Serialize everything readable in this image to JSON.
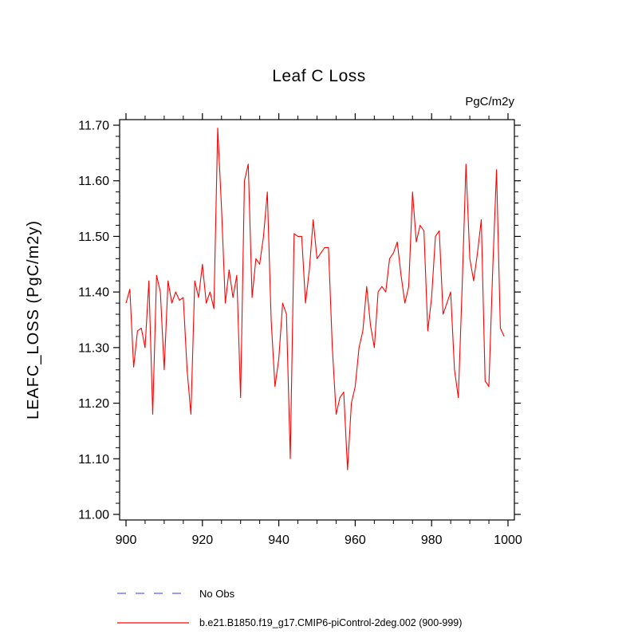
{
  "title": "Leaf C Loss",
  "units_label": "PgC/m2y",
  "y_axis_label": "LEAFC_LOSS  (PgC/m2y)",
  "legend": [
    {
      "label": "No Obs",
      "color": "#7a7aff",
      "style": "dashed"
    },
    {
      "label": "b.e21.B1850.f19_g17.CMIP6-piControl-2deg.002 (900-999)",
      "color": "#ff0000",
      "style": "solid"
    }
  ],
  "chart_data": {
    "type": "line",
    "title": "Leaf C Loss",
    "xlabel": "",
    "ylabel": "LEAFC_LOSS (PgC/m2y)",
    "xlim": [
      900,
      1000
    ],
    "ylim": [
      11.0,
      11.7
    ],
    "xticks": [
      900,
      920,
      940,
      960,
      980,
      1000
    ],
    "yticks": [
      11.0,
      11.1,
      11.2,
      11.3,
      11.4,
      11.5,
      11.6,
      11.7
    ],
    "x_minor_step": 5,
    "y_minor_step": 0.02,
    "grid": false,
    "legend_position": "bottom",
    "x_start": 900,
    "series": [
      {
        "name": "b.e21.B1850.f19_g17.CMIP6-piControl-2deg.002 (900-999)",
        "color": "#ff0000",
        "values": [
          11.38,
          11.405,
          11.265,
          11.33,
          11.335,
          11.3,
          11.42,
          11.18,
          11.43,
          11.4,
          11.26,
          11.42,
          11.38,
          11.4,
          11.385,
          11.39,
          11.26,
          11.18,
          11.42,
          11.39,
          11.45,
          11.38,
          11.4,
          11.37,
          11.695,
          11.55,
          11.38,
          11.44,
          11.39,
          11.43,
          11.21,
          11.6,
          11.63,
          11.39,
          11.46,
          11.45,
          11.5,
          11.58,
          11.35,
          11.23,
          11.28,
          11.38,
          11.36,
          11.1,
          11.505,
          11.5,
          11.5,
          11.38,
          11.44,
          11.53,
          11.46,
          11.47,
          11.48,
          11.48,
          11.3,
          11.18,
          11.21,
          11.22,
          11.08,
          11.2,
          11.23,
          11.3,
          11.33,
          11.41,
          11.34,
          11.3,
          11.4,
          11.41,
          11.4,
          11.46,
          11.47,
          11.49,
          11.43,
          11.38,
          11.41,
          11.58,
          11.49,
          11.52,
          11.51,
          11.33,
          11.39,
          11.5,
          11.51,
          11.36,
          11.38,
          11.4,
          11.26,
          11.21,
          11.41,
          11.63,
          11.46,
          11.42,
          11.47,
          11.53,
          11.24,
          11.23,
          11.44,
          11.62,
          11.335,
          11.32
        ]
      }
    ]
  }
}
